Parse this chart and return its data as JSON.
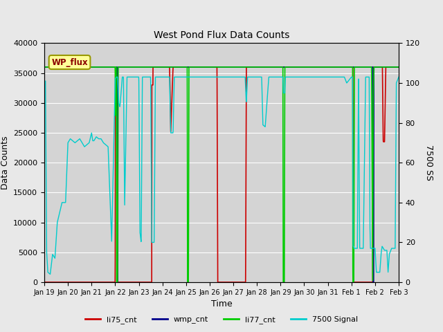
{
  "title": "West Pond Flux Data Counts",
  "xlabel": "Time",
  "ylabel_left": "Data Counts",
  "ylabel_right": "7500 SS",
  "ylim_left": [
    0,
    40000
  ],
  "ylim_right": [
    0,
    120
  ],
  "bg_color": "#e8e8e8",
  "plot_bg_color": "#d4d4d4",
  "series": {
    "li75_cnt": {
      "color": "#cc0000",
      "lw": 1.2
    },
    "wmp_cnt": {
      "color": "#00008b",
      "lw": 1.2
    },
    "li77_cnt": {
      "color": "#00cc00",
      "lw": 1.2
    },
    "7500 Signal": {
      "color": "#00cccc",
      "lw": 1.0
    }
  },
  "xtick_labels": [
    "Jan 19",
    "Jan 20",
    "Jan 21",
    "Jan 22",
    "Jan 23",
    "Jan 24",
    "Jan 25",
    "Jan 26",
    "Jan 27",
    "Jan 28",
    "Jan 29",
    "Jan 30",
    "Jan 31",
    "Feb 1",
    "Feb 2",
    "Feb 3"
  ],
  "yticks_left": [
    0,
    5000,
    10000,
    15000,
    20000,
    25000,
    30000,
    35000,
    40000
  ],
  "yticks_right": [
    0,
    20,
    40,
    60,
    80,
    100,
    120
  ],
  "wp_flux_label": "WP_flux",
  "legend_entries": [
    "li75_cnt",
    "wmp_cnt",
    "li77_cnt",
    "7500 Signal"
  ],
  "figsize": [
    6.4,
    4.8
  ],
  "dpi": 100
}
